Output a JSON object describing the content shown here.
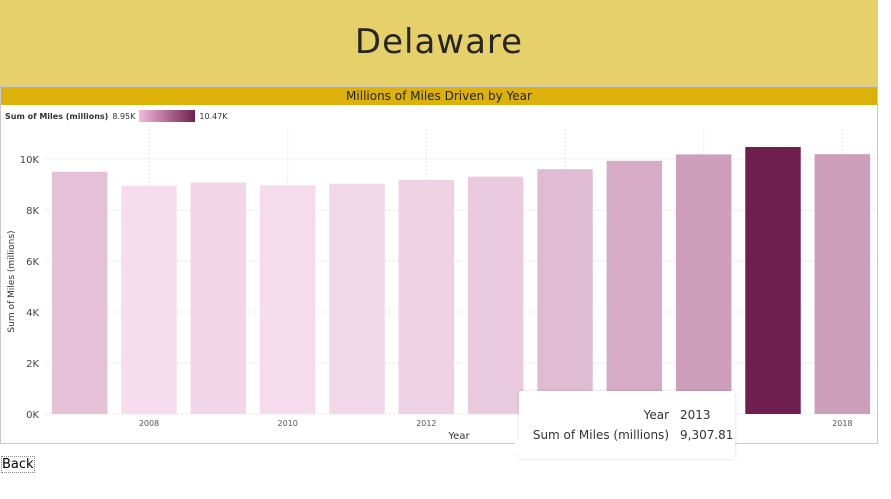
{
  "header": {
    "title": "Delaware"
  },
  "chart_title": "Millions of Miles Driven by Year",
  "legend": {
    "title": "Sum of Miles (millions)",
    "min_label": "8.95K",
    "max_label": "10.47K",
    "color_min": "#f5b9dd",
    "color_max": "#6f1f4f"
  },
  "tooltip": {
    "year_label": "Year",
    "year_value": "2013",
    "metric_label": "Sum of Miles (millions)",
    "metric_value": "9,307.81"
  },
  "nav": {
    "back_label": "Back"
  },
  "chart_data": {
    "type": "bar",
    "x": [
      2007,
      2008,
      2009,
      2010,
      2011,
      2012,
      2013,
      2014,
      2015,
      2016,
      2017,
      2018
    ],
    "values": [
      9500,
      8950,
      9080,
      8970,
      9030,
      9180,
      9307.81,
      9600,
      9930,
      10180,
      10470,
      10190
    ],
    "xlabel": "Year",
    "ylabel": "Sum of Miles (millions)",
    "ylim": [
      0,
      10000
    ],
    "y_ticks": [
      "0K",
      "2K",
      "4K",
      "6K",
      "8K",
      "10K"
    ],
    "x_tick_labels": [
      "2008",
      "2010",
      "2012",
      "2014",
      "2016",
      "2018"
    ],
    "highlighted": 2017,
    "highlight_color": "#6f1f4f",
    "grid": true
  }
}
